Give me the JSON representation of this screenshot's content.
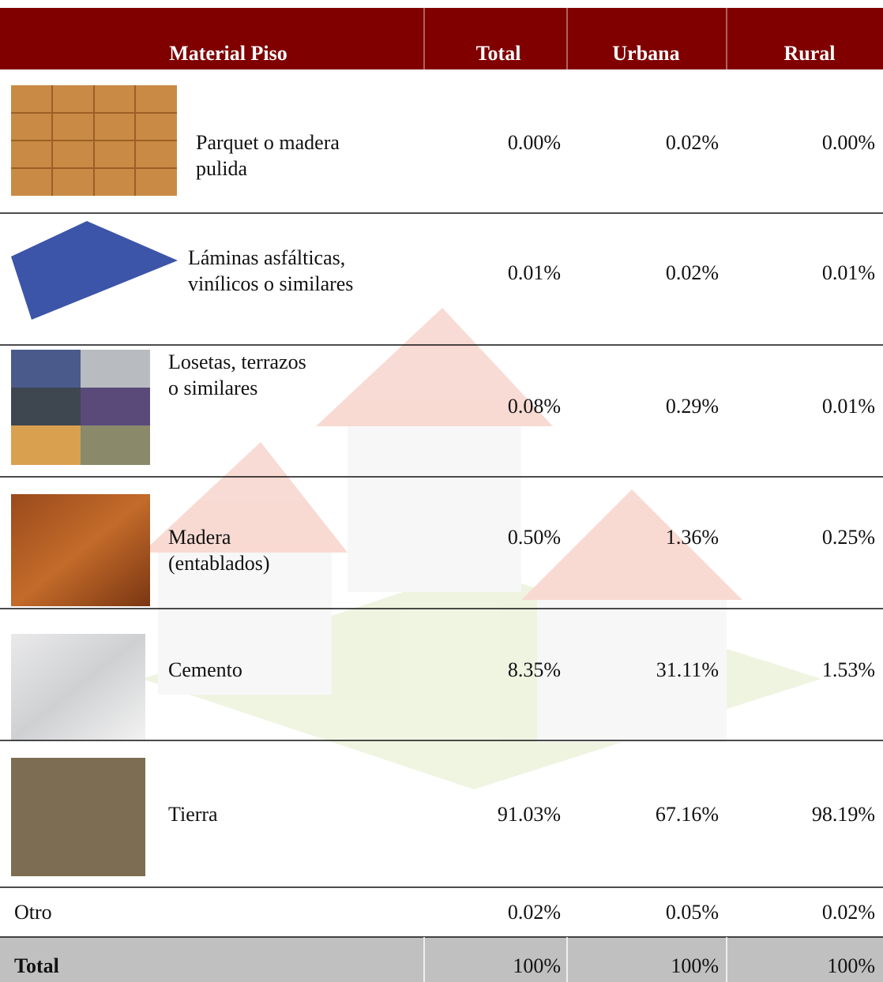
{
  "table": {
    "header": [
      "Material Piso",
      "Total",
      "Urbana",
      "Rural"
    ],
    "rows": [
      {
        "label": [
          "Parquet o madera",
          "pulida"
        ],
        "values": [
          "0.00%",
          "0.02%",
          "0.00%"
        ]
      },
      {
        "label": [
          "Láminas asfálticas,",
          "vinílicos o similares"
        ],
        "values": [
          "0.01%",
          "0.02%",
          "0.01%"
        ]
      },
      {
        "label": [
          "Losetas, terrazos",
          "o similares"
        ],
        "values": [
          "0.08%",
          "0.29%",
          "0.01%"
        ]
      },
      {
        "label": [
          "Madera",
          "(entablados)"
        ],
        "values": [
          "0.50%",
          "1.36%",
          "0.25%"
        ]
      },
      {
        "label": [
          "Cemento"
        ],
        "values": [
          "8.35%",
          "31.11%",
          "1.53%"
        ]
      },
      {
        "label": [
          "Tierra"
        ],
        "values": [
          "91.03%",
          "67.16%",
          "98.19%"
        ]
      },
      {
        "label": [
          "Otro"
        ],
        "values": [
          "0.02%",
          "0.05%",
          "0.02%"
        ]
      }
    ],
    "total": {
      "label": "Total",
      "values": [
        "100%",
        "100%",
        "100%"
      ]
    }
  }
}
